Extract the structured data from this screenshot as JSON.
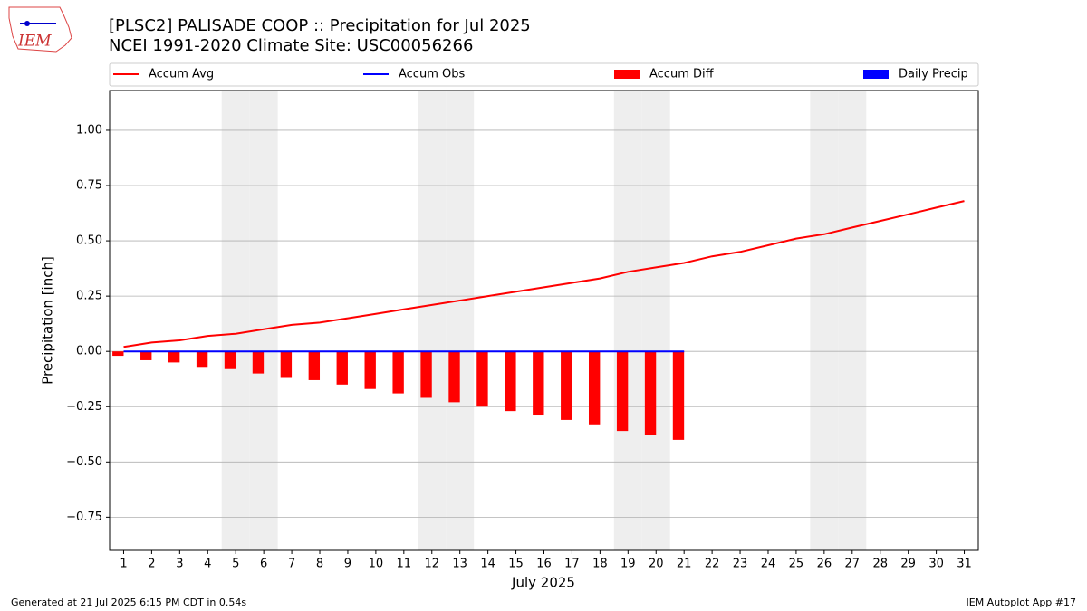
{
  "chart_data": {
    "type": "combo",
    "title": "[PLSC2] PALISADE COOP :: Precipitation for Jul 2025",
    "subtitle": "NCEI 1991-2020 Climate Site: USC00056266",
    "logo_text": "IEM",
    "x_label": "July 2025",
    "y_label": "Precipitation [inch]",
    "footer_left": "Generated at 21 Jul 2025 6:15 PM CDT in 0.54s",
    "footer_right": "IEM Autoplot App #17",
    "legend": "top",
    "grid": true,
    "weekend_days": [
      5,
      6,
      12,
      13,
      19,
      20,
      26,
      27
    ],
    "x": [
      1,
      2,
      3,
      4,
      5,
      6,
      7,
      8,
      9,
      10,
      11,
      12,
      13,
      14,
      15,
      16,
      17,
      18,
      19,
      20,
      21,
      22,
      23,
      24,
      25,
      26,
      27,
      28,
      29,
      30,
      31
    ],
    "xlim": [
      0.5,
      31.5
    ],
    "xticks": [
      1,
      2,
      3,
      4,
      5,
      6,
      7,
      8,
      9,
      10,
      11,
      12,
      13,
      14,
      15,
      16,
      17,
      18,
      19,
      20,
      21,
      22,
      23,
      24,
      25,
      26,
      27,
      28,
      29,
      30,
      31
    ],
    "ylim": [
      -0.9,
      1.18
    ],
    "yticks": [
      {
        "value": 1.0,
        "label": "1.00"
      },
      {
        "value": 0.75,
        "label": "0.75"
      },
      {
        "value": 0.5,
        "label": "0.50"
      },
      {
        "value": 0.25,
        "label": "0.25"
      },
      {
        "value": 0.0,
        "label": "0.00"
      },
      {
        "value": -0.25,
        "label": "−0.25"
      },
      {
        "value": -0.5,
        "label": "−0.50"
      },
      {
        "value": -0.75,
        "label": "−0.75"
      }
    ],
    "series": [
      {
        "name": "Accum Avg",
        "kind": "line",
        "color": "#ff0000",
        "values": [
          0.02,
          0.04,
          0.05,
          0.07,
          0.08,
          0.1,
          0.12,
          0.13,
          0.15,
          0.17,
          0.19,
          0.21,
          0.23,
          0.25,
          0.27,
          0.29,
          0.31,
          0.33,
          0.36,
          0.38,
          0.4,
          0.43,
          0.45,
          0.48,
          0.51,
          0.53,
          0.56,
          0.59,
          0.62,
          0.65,
          0.68
        ]
      },
      {
        "name": "Accum Obs",
        "kind": "line",
        "color": "#0000ff",
        "values": [
          0,
          0,
          0,
          0,
          0,
          0,
          0,
          0,
          0,
          0,
          0,
          0,
          0,
          0,
          0,
          0,
          0,
          0,
          0,
          0,
          0,
          null,
          null,
          null,
          null,
          null,
          null,
          null,
          null,
          null,
          null
        ]
      },
      {
        "name": "Accum Diff",
        "kind": "bar",
        "color": "#ff0000",
        "values": [
          -0.02,
          -0.04,
          -0.05,
          -0.07,
          -0.08,
          -0.1,
          -0.12,
          -0.13,
          -0.15,
          -0.17,
          -0.19,
          -0.21,
          -0.23,
          -0.25,
          -0.27,
          -0.29,
          -0.31,
          -0.33,
          -0.36,
          -0.38,
          -0.4,
          null,
          null,
          null,
          null,
          null,
          null,
          null,
          null,
          null,
          null
        ]
      },
      {
        "name": "Daily Precip",
        "kind": "bar",
        "color": "#0000ff",
        "values": [
          0,
          0,
          0,
          0,
          0,
          0,
          0,
          0,
          0,
          0,
          0,
          0,
          0,
          0,
          0,
          0,
          0,
          0,
          0,
          0,
          0,
          null,
          null,
          null,
          null,
          null,
          null,
          null,
          null,
          null,
          null
        ]
      }
    ]
  }
}
